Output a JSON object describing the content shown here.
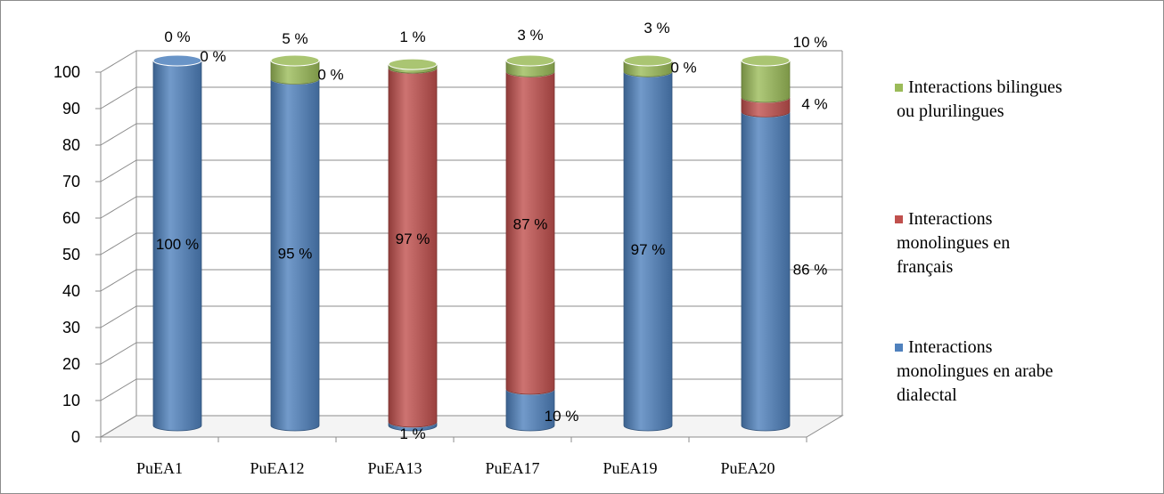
{
  "chart_data": {
    "type": "bar",
    "style": "3d-stacked-cylinder",
    "categories": [
      "PuEA1",
      "PuEA12",
      "PuEA13",
      "PuEA17",
      "PuEA19",
      "PuEA20"
    ],
    "series": [
      {
        "name": "Interactions monolingues en arabe dialectal",
        "color": "#4f81bd",
        "values": [
          100,
          95,
          1,
          10,
          97,
          86
        ],
        "labels": [
          "100 %",
          "95 %",
          "1 %",
          "10 %",
          "97 %",
          "86 %"
        ]
      },
      {
        "name": "Interactions monolingues en français",
        "color": "#c0504d",
        "values": [
          0,
          0,
          97,
          87,
          0,
          4
        ],
        "labels": [
          "0 %",
          "0 %",
          "97 %",
          "87 %",
          "0 %",
          "4 %"
        ]
      },
      {
        "name": "Interactions bilingues ou plurilingues",
        "color": "#9bbb59",
        "values": [
          0,
          5,
          1,
          3,
          3,
          10
        ],
        "labels": [
          "0 %",
          "5 %",
          "1 %",
          "3 %",
          "3 %",
          "10 %"
        ]
      }
    ],
    "legend_order": [
      2,
      1,
      0
    ],
    "legend_lines": [
      [
        "Interactions bilingues",
        "ou plurilingues"
      ],
      [
        "Interactions",
        "monolingues en",
        "français"
      ],
      [
        "Interactions",
        "monolingues en arabe",
        "dialectal"
      ]
    ],
    "y_ticks": [
      "0",
      "10",
      "20",
      "30",
      "40",
      "50",
      "60",
      "70",
      "80",
      "90",
      "100"
    ],
    "ylim": [
      0,
      100
    ],
    "grid": true,
    "legend_position": "right"
  }
}
